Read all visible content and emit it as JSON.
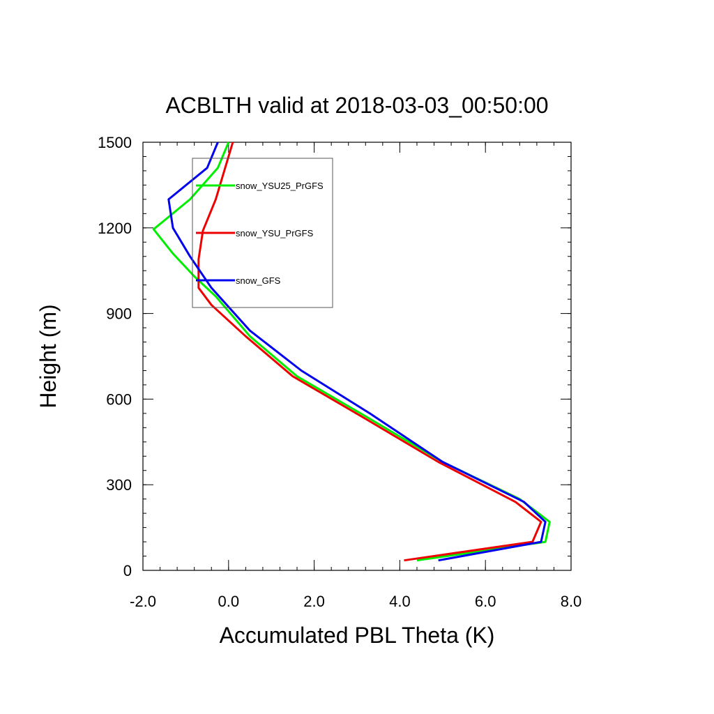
{
  "chart_data": {
    "type": "line",
    "title": "ACBLTH valid at 2018-03-03_00:50:00",
    "xlabel": "Accumulated PBL Theta (K)",
    "ylabel": "Height (m)",
    "xlim": [
      -2.0,
      8.0
    ],
    "ylim": [
      0,
      1500
    ],
    "x_ticks": [
      -2.0,
      0.0,
      2.0,
      4.0,
      6.0,
      8.0
    ],
    "x_tick_labels": [
      "-2.0",
      "0.0",
      "2.0",
      "4.0",
      "6.0",
      "8.0"
    ],
    "y_ticks": [
      0,
      300,
      600,
      900,
      1200,
      1500
    ],
    "y_tick_labels": [
      "0",
      "300",
      "600",
      "900",
      "1200",
      "1500"
    ],
    "x_minor_step": 0.4,
    "y_minor_step": 50,
    "grid": false,
    "legend_position": "top-left",
    "series": [
      {
        "name": "snow_YSU25_PrGFS",
        "color": "#00ee00",
        "x": [
          4.4,
          7.4,
          7.5,
          6.8,
          5.0,
          3.2,
          1.6,
          0.5,
          -0.3,
          -0.8,
          -1.3,
          -1.75,
          -0.9,
          -0.25,
          0.0
        ],
        "y": [
          35,
          100,
          170,
          250,
          380,
          540,
          680,
          820,
          960,
          1030,
          1110,
          1195,
          1300,
          1410,
          1500
        ]
      },
      {
        "name": "snow_YSU_PrGFS",
        "color": "#ee0000",
        "x": [
          4.1,
          7.1,
          7.3,
          6.7,
          4.9,
          3.1,
          1.5,
          0.4,
          -0.4,
          -0.7,
          -0.7,
          -0.6,
          -0.3,
          0.1
        ],
        "y": [
          35,
          100,
          170,
          240,
          380,
          540,
          680,
          820,
          930,
          990,
          1090,
          1190,
          1300,
          1500
        ]
      },
      {
        "name": "snow_GFS",
        "color": "#0000ee",
        "x": [
          4.9,
          7.3,
          7.4,
          6.9,
          5.0,
          3.3,
          1.7,
          0.5,
          -0.4,
          -0.9,
          -1.3,
          -1.4,
          -0.5,
          -0.25
        ],
        "y": [
          35,
          100,
          170,
          240,
          380,
          550,
          700,
          840,
          990,
          1100,
          1200,
          1300,
          1410,
          1500
        ]
      }
    ]
  }
}
